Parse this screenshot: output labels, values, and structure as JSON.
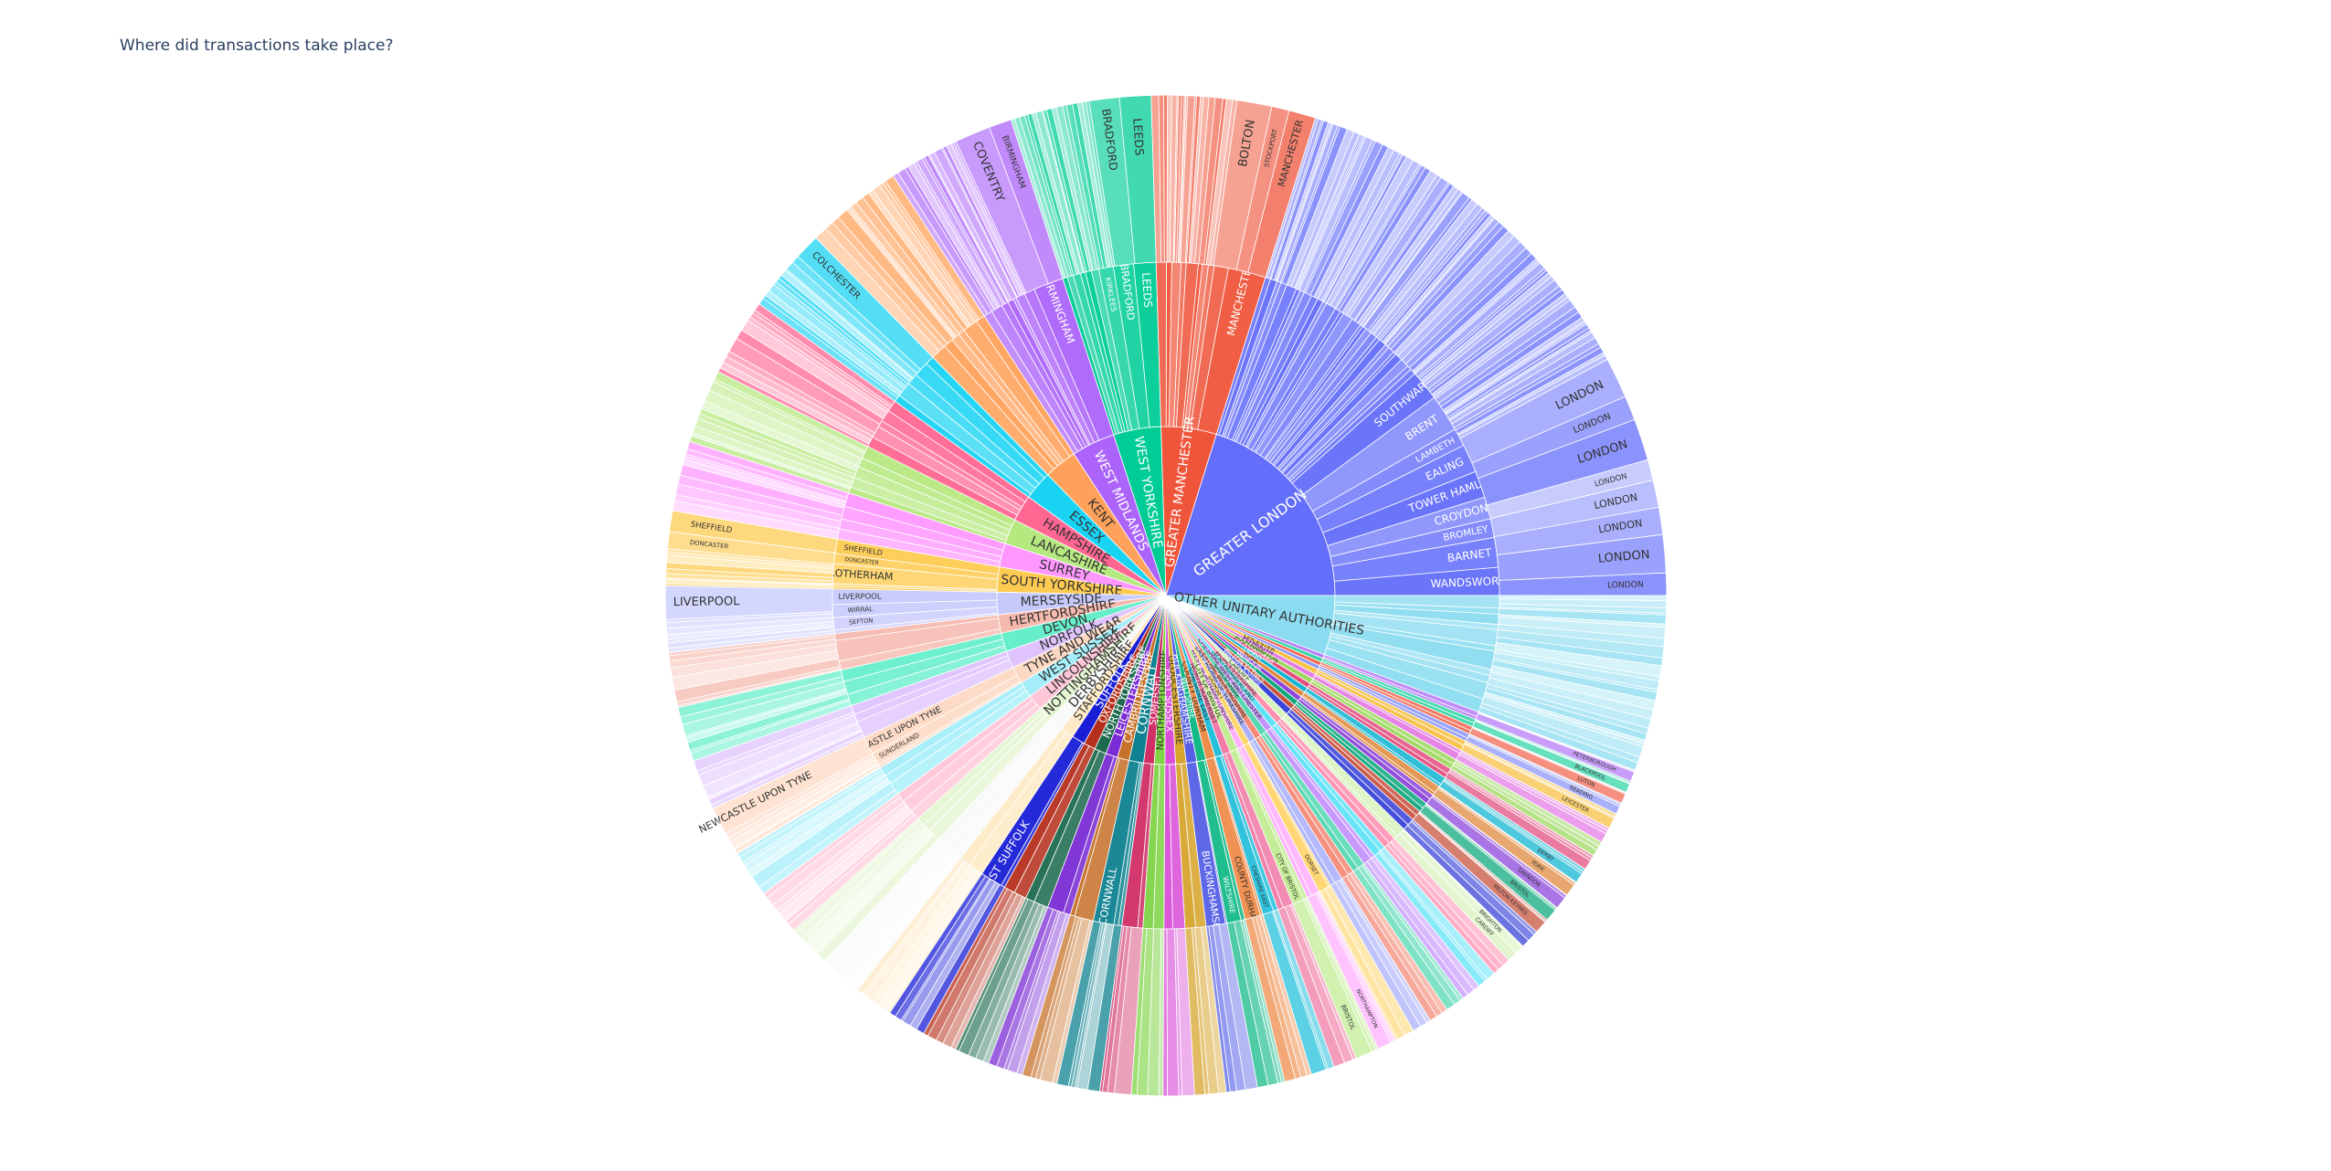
{
  "title": "Where did transactions take place?",
  "chart_data": {
    "type": "sunburst",
    "title": "Where did transactions take place?",
    "levels": [
      "county",
      "district",
      "town"
    ],
    "counties": [
      {
        "name": "GREATER LONDON",
        "value": 16,
        "color": "#636efa",
        "districts": [
          "WANDSWORTH",
          "BARNET",
          "BROMLEY",
          "CROYDON",
          "TOWER HAMLETS",
          "EALING",
          "LAMBETH",
          "BRENT",
          "SOUTHWARK"
        ],
        "towns": [
          "LONDON",
          "LONDON",
          "LONDON",
          "LONDON",
          "LONDON",
          "LONDON",
          "LONDON",
          "LONDON"
        ]
      },
      {
        "name": "GREATER MANCHESTER",
        "value": 4.2,
        "color": "#ef553b",
        "districts": [
          "MANCHESTER"
        ],
        "towns": [
          "MANCHESTER",
          "STOCKPORT",
          "BOLTON"
        ]
      },
      {
        "name": "WEST YORKSHIRE",
        "value": 3.6,
        "color": "#00cc96",
        "districts": [
          "LEEDS",
          "BRADFORD",
          "KIRKLEES"
        ],
        "towns": [
          "LEEDS",
          "BRADFORD"
        ]
      },
      {
        "name": "WEST MIDLANDS",
        "value": 3.3,
        "color": "#ab63fa",
        "districts": [
          "BIRMINGHAM"
        ],
        "towns": [
          "BIRMINGHAM",
          "COVENTRY"
        ]
      },
      {
        "name": "KENT",
        "value": 2.5,
        "color": "#ffa15a",
        "districts": [],
        "towns": []
      },
      {
        "name": "ESSEX",
        "value": 2.2,
        "color": "#19d3f3",
        "districts": [],
        "towns": [
          "COLCHESTER"
        ]
      },
      {
        "name": "HAMPSHIRE",
        "value": 2.0,
        "color": "#ff6692",
        "districts": [],
        "towns": []
      },
      {
        "name": "LANCASHIRE",
        "value": 1.9,
        "color": "#b6e880",
        "districts": [],
        "towns": []
      },
      {
        "name": "SURREY",
        "value": 1.8,
        "color": "#ff97ff",
        "districts": [],
        "towns": []
      },
      {
        "name": "SOUTH YORKSHIRE",
        "value": 1.9,
        "color": "#fecb52",
        "districts": [
          "SHEFFIELD",
          "DONCASTER",
          "ROTHERHAM"
        ],
        "towns": [
          "SHEFFIELD",
          "DONCASTER"
        ]
      },
      {
        "name": "MERSEYSIDE",
        "value": 1.7,
        "color": "#c6c9fc",
        "districts": [
          "LIVERPOOL",
          "WIRRAL",
          "SEFTON"
        ],
        "towns": [
          "LIVERPOOL"
        ]
      },
      {
        "name": "HERTFORDSHIRE",
        "value": 1.4,
        "color": "#f6b9ae",
        "districts": [],
        "towns": []
      },
      {
        "name": "DEVON",
        "value": 1.4,
        "color": "#66eecb",
        "districts": [],
        "towns": []
      },
      {
        "name": "NORFOLK",
        "value": 1.3,
        "color": "#dfc3fd",
        "districts": [],
        "towns": []
      },
      {
        "name": "TYNE AND WEAR",
        "value": 1.3,
        "color": "#fdd9c3",
        "districts": [
          "NEWCASTLE UPON TYNE",
          "SUNDERLAND"
        ],
        "towns": [
          "NEWCASTLE UPON TYNE"
        ]
      },
      {
        "name": "WEST SUSSEX",
        "value": 1.2,
        "color": "#a3eef9",
        "districts": [],
        "towns": []
      },
      {
        "name": "LINCOLNSHIRE",
        "value": 1.2,
        "color": "#ffc6d7",
        "districts": [],
        "towns": []
      },
      {
        "name": "NOTTINGHAMSHIRE",
        "value": 1.1,
        "color": "#e4f5d2",
        "districts": [],
        "towns": []
      },
      {
        "name": "DERBYSHIRE",
        "value": 1.1,
        "color": "#f9f9f9",
        "districts": [],
        "towns": []
      },
      {
        "name": "STAFFORDSHIRE",
        "value": 1.0,
        "color": "#feeac6",
        "districts": [],
        "towns": []
      },
      {
        "name": "SUFFOLK",
        "value": 1.0,
        "color": "#1a1fd6",
        "districts": [
          "EAST SUFFOLK"
        ],
        "towns": []
      },
      {
        "name": "OXFORDSHIRE",
        "value": 0.9,
        "color": "#b5301c",
        "districts": [],
        "towns": []
      },
      {
        "name": "NORTH YORKSHIRE",
        "value": 0.9,
        "color": "#1d6b4e",
        "districts": [],
        "towns": []
      },
      {
        "name": "LEICESTERSHIRE",
        "value": 0.9,
        "color": "#7a2bd4",
        "districts": [],
        "towns": []
      },
      {
        "name": "CAMBRIDGESHIRE",
        "value": 0.9,
        "color": "#c7722a",
        "districts": [],
        "towns": []
      },
      {
        "name": "CORNWALL",
        "value": 1.1,
        "color": "#0e8290",
        "districts": [
          "CORNWALL"
        ],
        "towns": []
      },
      {
        "name": "SOMERSET",
        "value": 0.8,
        "color": "#d12e66",
        "districts": [],
        "towns": []
      },
      {
        "name": "NORTHAMPTONSHIRE",
        "value": 0.8,
        "color": "#7ed445",
        "districts": [],
        "towns": []
      },
      {
        "name": "EAST SUSSEX",
        "value": 0.8,
        "color": "#d94fd8",
        "districts": [],
        "towns": []
      },
      {
        "name": "GLOUCESTERSHIRE",
        "value": 0.8,
        "color": "#d7a42c",
        "districts": [],
        "towns": []
      },
      {
        "name": "BUCKINGHAMSHIRE",
        "value": 0.8,
        "color": "#5660e6",
        "districts": [
          "BUCKINGHAMSHIRE"
        ],
        "towns": []
      },
      {
        "name": "WILTSHIRE",
        "value": 0.7,
        "color": "#14b988",
        "districts": [
          "WILTSHIRE"
        ],
        "towns": []
      },
      {
        "name": "COUNTY DURHAM",
        "value": 0.7,
        "color": "#ee8c4a",
        "districts": [
          "COUNTY DURHAM"
        ],
        "towns": []
      },
      {
        "name": "CHESHIRE EAST",
        "value": 0.6,
        "color": "#26c0dc",
        "districts": [
          "CHESHIRE EAST"
        ],
        "towns": []
      },
      {
        "name": "NORTH SOMERSET",
        "value": 0.6,
        "color": "#f07ba6",
        "districts": [],
        "towns": []
      },
      {
        "name": "CITY OF BRISTOL",
        "value": 0.6,
        "color": "#c2ec94",
        "districts": [
          "CITY OF BRISTOL"
        ],
        "towns": [
          "BRISTOL"
        ]
      },
      {
        "name": "WEST NORTHAMPTONSHIRE",
        "value": 0.5,
        "color": "#ffb0ff",
        "districts": [],
        "towns": [
          "NORTHAMPTON"
        ]
      },
      {
        "name": "DORSET",
        "value": 0.5,
        "color": "#ffd56e",
        "districts": [
          "DORSET"
        ],
        "towns": []
      },
      {
        "name": "EAST RIDING OF YORKSHIRE",
        "value": 0.5,
        "color": "#a9b0fb",
        "districts": [],
        "towns": []
      },
      {
        "name": "CENTRAL BEDFORDSHIRE",
        "value": 0.5,
        "color": "#f48a77",
        "districts": [],
        "towns": []
      },
      {
        "name": "SHROPSHIRE",
        "value": 0.5,
        "color": "#53d8b2",
        "districts": [],
        "towns": []
      },
      {
        "name": "CHESHIRE WEST AND CHESTER",
        "value": 0.5,
        "color": "#c594fc",
        "districts": [],
        "towns": []
      },
      {
        "name": "NORTHUMBERLAND",
        "value": 0.5,
        "color": "#5fe3f7",
        "districts": [],
        "towns": []
      },
      {
        "name": "WORCESTERSHIRE",
        "value": 0.5,
        "color": "#ff8fb0",
        "districts": [],
        "towns": []
      },
      {
        "name": "CARDIFF",
        "value": 0.5,
        "color": "#d8f2bd",
        "districts": [],
        "towns": [
          "CARDIFF",
          "BRIGHTON"
        ]
      },
      {
        "name": "WARWICKSHIRE",
        "value": 0.5,
        "color": "#3a44d8",
        "districts": [],
        "towns": []
      },
      {
        "name": "MILTON KEYNES",
        "value": 0.4,
        "color": "#c8543f",
        "districts": [],
        "towns": [
          "MILTON KEYNES"
        ]
      },
      {
        "name": "BRISTOL",
        "value": 0.4,
        "color": "#0fa97e",
        "districts": [],
        "towns": [
          "BRISTOL"
        ]
      },
      {
        "name": "SWINDON",
        "value": 0.4,
        "color": "#8c46d9",
        "districts": [],
        "towns": [
          "SWINDON"
        ]
      },
      {
        "name": "YORK",
        "value": 0.4,
        "color": "#e08a3e",
        "districts": [],
        "towns": [
          "YORK"
        ]
      },
      {
        "name": "DERBY",
        "value": 0.4,
        "color": "#12b5d1",
        "districts": [],
        "towns": [
          "DERBY"
        ]
      },
      {
        "name": "NOTTINGHAM",
        "value": 0.4,
        "color": "#e34f80",
        "districts": [],
        "towns": []
      },
      {
        "name": "SOUTHAMPTON",
        "value": 0.4,
        "color": "#9ed860",
        "districts": [],
        "towns": []
      },
      {
        "name": "PLYMOUTH",
        "value": 0.4,
        "color": "#e47de4",
        "districts": [],
        "towns": []
      },
      {
        "name": "LEICESTER",
        "value": 0.4,
        "color": "#f7c145",
        "districts": [],
        "towns": [
          "LEICESTER"
        ]
      },
      {
        "name": "READING",
        "value": 0.3,
        "color": "#8e97f8",
        "districts": [],
        "towns": [
          "READING"
        ]
      },
      {
        "name": "LUTON",
        "value": 0.3,
        "color": "#f26b55",
        "districts": [],
        "towns": [
          "LUTON"
        ]
      },
      {
        "name": "BLACKPOOL",
        "value": 0.3,
        "color": "#33d6a7",
        "districts": [],
        "towns": [
          "BLACKPOOL"
        ]
      },
      {
        "name": "PETERBOROUGH",
        "value": 0.3,
        "color": "#b77df8",
        "districts": [],
        "towns": [
          "PETERBOROUGH"
        ]
      },
      {
        "name": "OTHER UNITARY AUTHORITIES",
        "value": 4.5,
        "color": "#8bdcf0",
        "districts": [],
        "towns": []
      }
    ]
  }
}
